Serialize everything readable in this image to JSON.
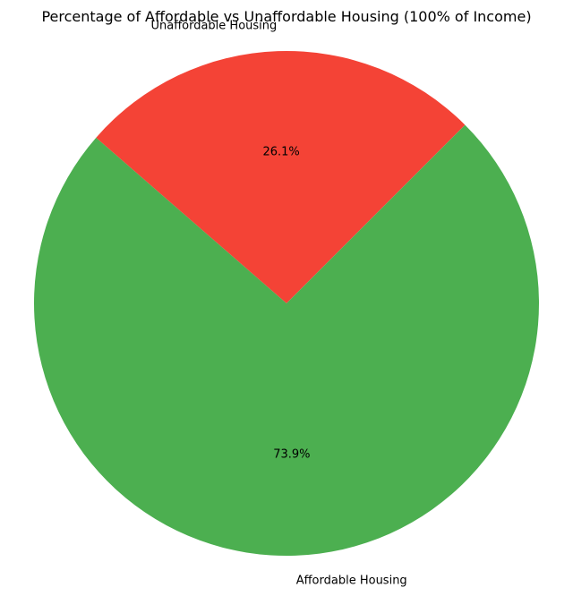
{
  "chart_data": {
    "type": "pie",
    "title": "Percentage of Affordable vs Unaffordable Housing (100% of Income)",
    "slices": [
      {
        "label": "Unaffordable Housing",
        "value": 26.1,
        "pct_label": "26.1%",
        "color": "#f44336"
      },
      {
        "label": "Affordable Housing",
        "value": 73.9,
        "pct_label": "73.9%",
        "color": "#4caf50"
      }
    ],
    "legend": "none"
  }
}
